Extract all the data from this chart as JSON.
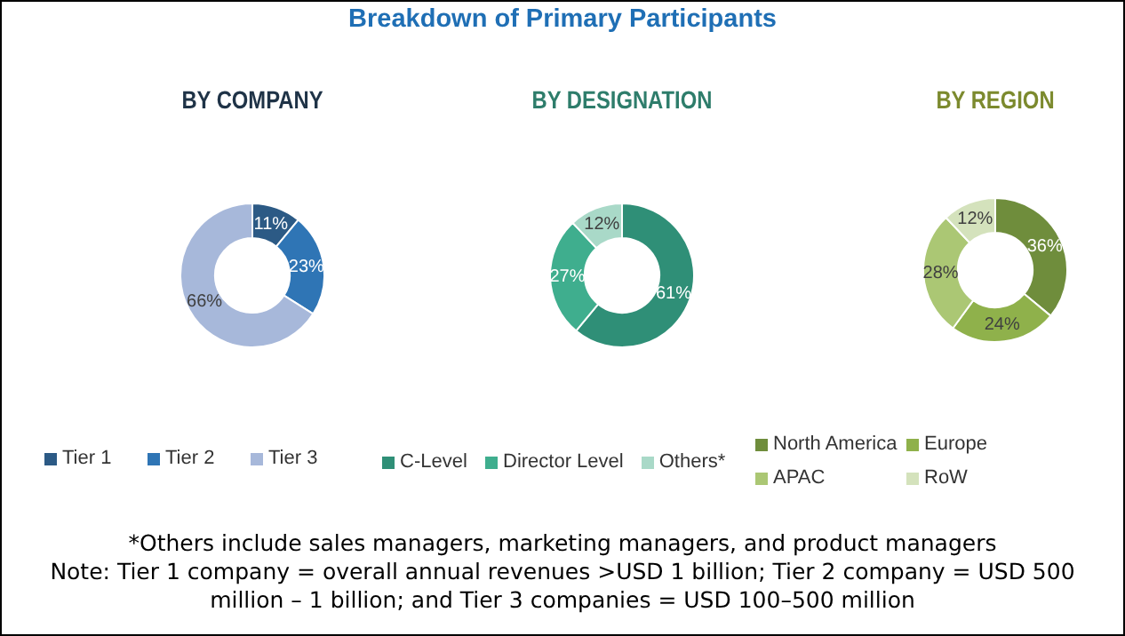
{
  "chart_data": [
    {
      "type": "other",
      "title": "Breakdown of Primary Participants",
      "annotations": [
        "*Others include sales managers, marketing managers, and product managers",
        "Note: Tier 1 company = overall annual revenues >USD 1 billion; Tier 2 company = USD 500 million – 1 billion; and Tier 3 companies = USD 100–500 million"
      ]
    },
    {
      "type": "donut",
      "title": "BY COMPANY",
      "categories": [
        "Tier 1",
        "Tier 2",
        "Tier 3"
      ],
      "values": [
        11,
        23,
        66
      ],
      "value_labels": [
        "11%",
        "23%",
        "66%"
      ],
      "colors": [
        "#2c5a85",
        "#2f75b5",
        "#a7b8da"
      ],
      "legend": "bottom"
    },
    {
      "type": "donut",
      "title": "BY DESIGNATION",
      "categories": [
        "C-Level",
        "Director Level",
        "Others*"
      ],
      "values": [
        61,
        27,
        12
      ],
      "value_labels": [
        "61%",
        "27%",
        "12%"
      ],
      "colors": [
        "#2f8f77",
        "#3fae8e",
        "#a9d9c8"
      ],
      "legend": "bottom"
    },
    {
      "type": "donut",
      "title": "BY REGION",
      "categories": [
        "North America",
        "Europe",
        "APAC",
        "RoW"
      ],
      "values": [
        36,
        24,
        28,
        12
      ],
      "value_labels": [
        "36%",
        "24%",
        "28%",
        "12%"
      ],
      "colors": [
        "#6f8d3c",
        "#8fb14b",
        "#abc774",
        "#d4e2bc"
      ],
      "legend": "bottom"
    }
  ]
}
